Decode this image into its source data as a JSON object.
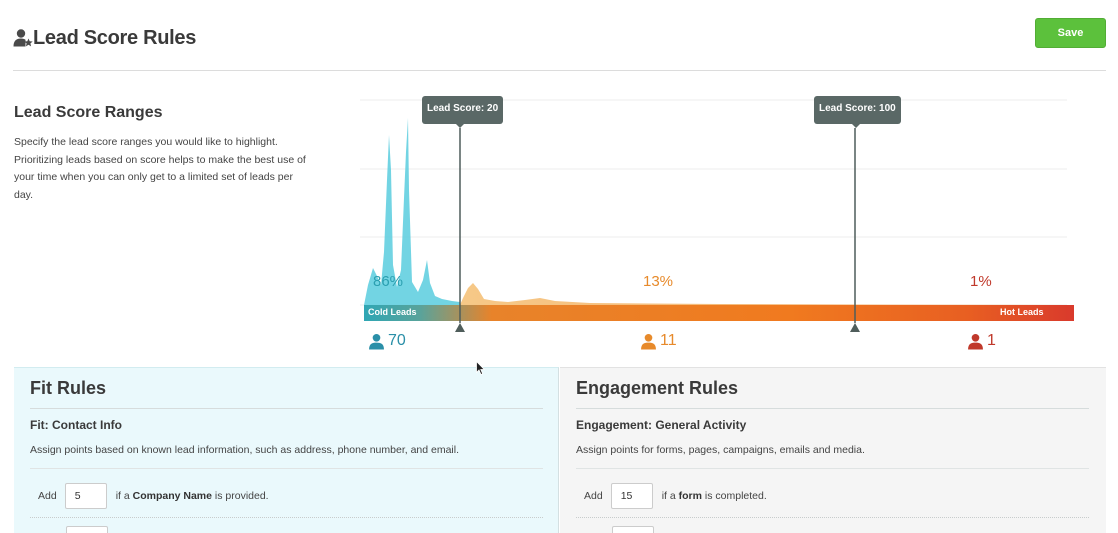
{
  "header": {
    "title": "Lead Score Rules",
    "title_icon": "user-star-icon",
    "save_label": "Save"
  },
  "ranges": {
    "title": "Lead Score Ranges",
    "description": "Specify the lead score ranges you would like to highlight. Prioritizing leads based on score helps to make the best use of your time when you can only get to a limited set of leads per day.",
    "markers": [
      {
        "label": "Lead Score: 20",
        "score": 20
      },
      {
        "label": "Lead Score: 100",
        "score": 100
      }
    ],
    "bar_labels": {
      "cold": "Cold Leads",
      "hot": "Hot Leads"
    },
    "segments": {
      "cold": {
        "percent": "86%",
        "count": "70",
        "color": "#2a9fb0"
      },
      "warm": {
        "percent": "13%",
        "count": "11",
        "color": "#e78a2b"
      },
      "hot": {
        "percent": "1%",
        "count": "1",
        "color": "#c0392b"
      }
    }
  },
  "fit": {
    "title": "Fit Rules",
    "subtitle": "Fit: Contact Info",
    "description": "Assign points based on known lead information, such as address, phone number, and email.",
    "rule": {
      "add": "Add",
      "value": "5",
      "text_pre": "if a",
      "text_bold": "Company Name",
      "text_post": "is provided."
    }
  },
  "engagement": {
    "title": "Engagement Rules",
    "subtitle": "Engagement: General Activity",
    "description": "Assign points for forms, pages, campaigns, emails and media.",
    "rule": {
      "add": "Add",
      "value": "15",
      "text_pre": "if a",
      "text_bold": "form",
      "text_post": "is completed."
    }
  },
  "colors": {
    "save": "#5cc13c",
    "cold": "#2a9fb0",
    "warm": "#e78a2b",
    "hot": "#c0392b",
    "fit_panel": "#eaf9fc",
    "marker": "#5a6866"
  }
}
